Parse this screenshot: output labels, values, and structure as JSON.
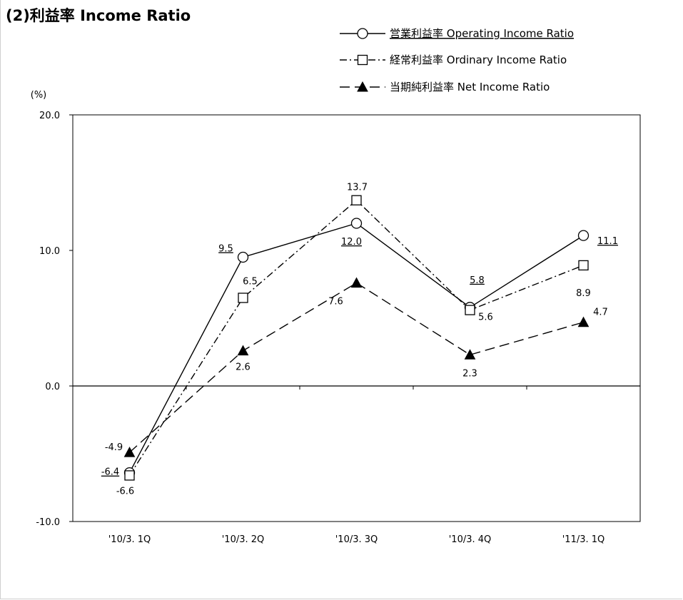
{
  "page_title": "(2)利益率 Income Ratio",
  "chart_data": {
    "type": "line",
    "title": "(2)利益率 Income Ratio",
    "ylabel": "(%)",
    "xlabel": "",
    "categories": [
      "'10/3. 1Q",
      "'10/3. 2Q",
      "'10/3. 3Q",
      "'10/3. 4Q",
      "'11/3. 1Q"
    ],
    "ylim": [
      -10.0,
      20.0
    ],
    "y_ticks": [
      -10.0,
      0.0,
      10.0,
      20.0
    ],
    "y_tick_labels": [
      "-10.0",
      "0.0",
      "10.0",
      "20.0"
    ],
    "grid": false,
    "legend_position": "top-right",
    "series": [
      {
        "name": "営業利益率 Operating Income Ratio",
        "values": [
          -6.4,
          9.5,
          12.0,
          5.8,
          11.1
        ],
        "labels": [
          "-6.4",
          "9.5",
          "12.0",
          "5.8",
          "11.1"
        ],
        "line_style": "solid",
        "marker": "circle",
        "labels_underlined": true,
        "color": "#000000"
      },
      {
        "name": "経常利益率 Ordinary Income Ratio",
        "values": [
          -6.6,
          6.5,
          13.7,
          5.6,
          8.9
        ],
        "labels": [
          "-6.6",
          "6.5",
          "13.7",
          "5.6",
          "8.9"
        ],
        "line_style": "dash-dot",
        "marker": "square",
        "labels_underlined": false,
        "color": "#000000"
      },
      {
        "name": "当期純利益率 Net Income Ratio",
        "values": [
          -4.9,
          2.6,
          7.6,
          2.3,
          4.7
        ],
        "labels": [
          "-4.9",
          "2.6",
          "7.6",
          "2.3",
          "4.7"
        ],
        "line_style": "dashed",
        "marker": "triangle",
        "labels_underlined": false,
        "color": "#000000"
      }
    ]
  }
}
